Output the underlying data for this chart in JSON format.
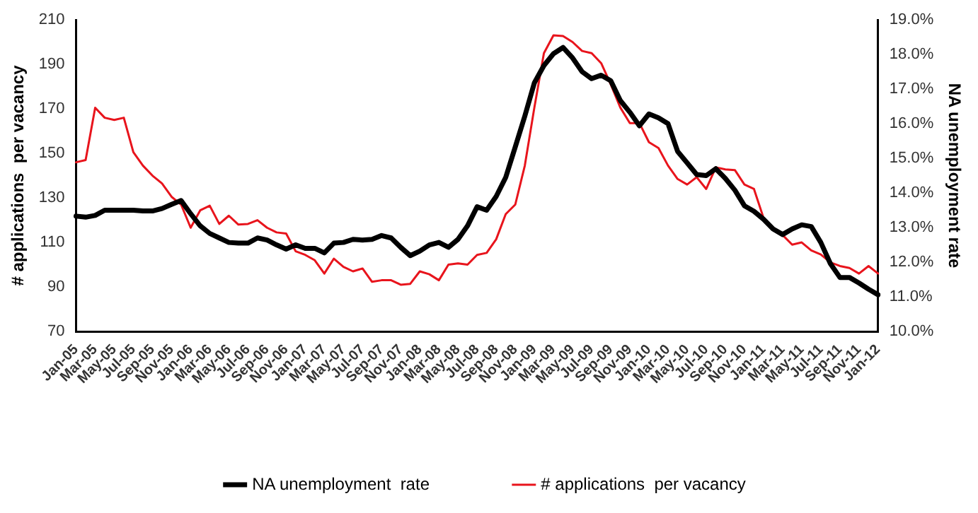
{
  "chart_data": {
    "type": "line",
    "ylabel": "# applications  per vacancy",
    "y2label": "NA unemployment rate",
    "categories": [
      "Jan-05",
      null,
      "Mar-05",
      null,
      "May-05",
      null,
      "Jul-05",
      null,
      "Sep-05",
      null,
      "Nov-05",
      null,
      "Jan-06",
      null,
      "Mar-06",
      null,
      "May-06",
      null,
      "Jul-06",
      null,
      "Sep-06",
      null,
      "Nov-06",
      null,
      "Jan-07",
      null,
      "Mar-07",
      null,
      "May-07",
      null,
      "Jul-07",
      null,
      "Sep-07",
      null,
      "Nov-07",
      null,
      "Jan-08",
      null,
      "Mar-08",
      null,
      "May-08",
      null,
      "Jul-08",
      null,
      "Sep-08",
      null,
      "Nov-08",
      null,
      "Jan-09",
      null,
      "Mar-09",
      null,
      "May-09",
      null,
      "Jul-09",
      null,
      "Sep-09",
      null,
      "Nov-09",
      null,
      "Jan-10",
      null,
      "Mar-10",
      null,
      "May-10",
      null,
      "Jul-10",
      null,
      "Sep-10",
      null,
      "Nov-10",
      null,
      "Jan-11",
      null,
      "Mar-11",
      null,
      "May-11",
      null,
      "Jul-11",
      null,
      "Sep-11",
      null,
      "Nov-11",
      null,
      "Jan-12"
    ],
    "series": [
      {
        "name": "# applications  per vacancy",
        "color": "#e8141c",
        "values": [
          146,
          147,
          170.5,
          166,
          165,
          166,
          150.5,
          144.5,
          140,
          136.5,
          130.5,
          127,
          116.6,
          124.4,
          126.5,
          118.3,
          122,
          118,
          118.3,
          120,
          116.6,
          114.5,
          114,
          106,
          104.4,
          102,
          96,
          102.7,
          99,
          97,
          98.3,
          92.3,
          93,
          93,
          91,
          91.4,
          97,
          95.7,
          93,
          100,
          100.6,
          100,
          104.4,
          105.3,
          111.4,
          122.7,
          127,
          144.5,
          170.6,
          195,
          203,
          202.7,
          200,
          196,
          195,
          190.5,
          181,
          170.6,
          163.6,
          163.6,
          155,
          152.4,
          144.5,
          138.5,
          136,
          139.3,
          134,
          143.7,
          142.8,
          142.5,
          136,
          134,
          121,
          116,
          113.3,
          109,
          110,
          106.4,
          104.6,
          101,
          99.4,
          98.5,
          96,
          99.4,
          96
        ]
      },
      {
        "name": "NA unemployment  rate",
        "color": "#000000",
        "axis": "y2",
        "values": [
          13.33,
          13.3,
          13.35,
          13.5,
          13.5,
          13.5,
          13.5,
          13.48,
          13.48,
          13.55,
          13.67,
          13.78,
          13.4,
          13.05,
          12.83,
          12.7,
          12.57,
          12.55,
          12.55,
          12.7,
          12.64,
          12.5,
          12.38,
          12.5,
          12.4,
          12.4,
          12.27,
          12.55,
          12.57,
          12.66,
          12.64,
          12.66,
          12.77,
          12.7,
          12.43,
          12.19,
          12.32,
          12.5,
          12.57,
          12.43,
          12.66,
          13.05,
          13.6,
          13.5,
          13.9,
          14.45,
          15.33,
          16.22,
          17.18,
          17.68,
          18.02,
          18.2,
          17.9,
          17.5,
          17.3,
          17.4,
          17.24,
          16.67,
          16.33,
          15.94,
          16.28,
          16.17,
          16.0,
          15.2,
          14.87,
          14.53,
          14.5,
          14.7,
          14.42,
          14.08,
          13.63,
          13.47,
          13.24,
          12.96,
          12.8,
          12.96,
          13.08,
          13.03,
          12.57,
          11.96,
          11.56,
          11.56,
          11.4,
          11.22,
          11.06
        ]
      }
    ],
    "ylim": [
      70,
      210
    ],
    "yticks": [
      70,
      90,
      110,
      130,
      150,
      170,
      190,
      210
    ],
    "y2lim": [
      10,
      19
    ],
    "y2ticks": [
      {
        "value": 10,
        "label": "10.0%"
      },
      {
        "value": 11,
        "label": "11.0%"
      },
      {
        "value": 12,
        "label": "12.0%"
      },
      {
        "value": 13,
        "label": "13.0%"
      },
      {
        "value": 14,
        "label": "14.0%"
      },
      {
        "value": 15,
        "label": "15.0%"
      },
      {
        "value": 16,
        "label": "16.0%"
      },
      {
        "value": 17,
        "label": "17.0%"
      },
      {
        "value": 18,
        "label": "18.0%"
      },
      {
        "value": 19,
        "label": "19.0%"
      }
    ],
    "grid": false,
    "legend": "bottom",
    "marker": "none",
    "line_style": "solid"
  }
}
